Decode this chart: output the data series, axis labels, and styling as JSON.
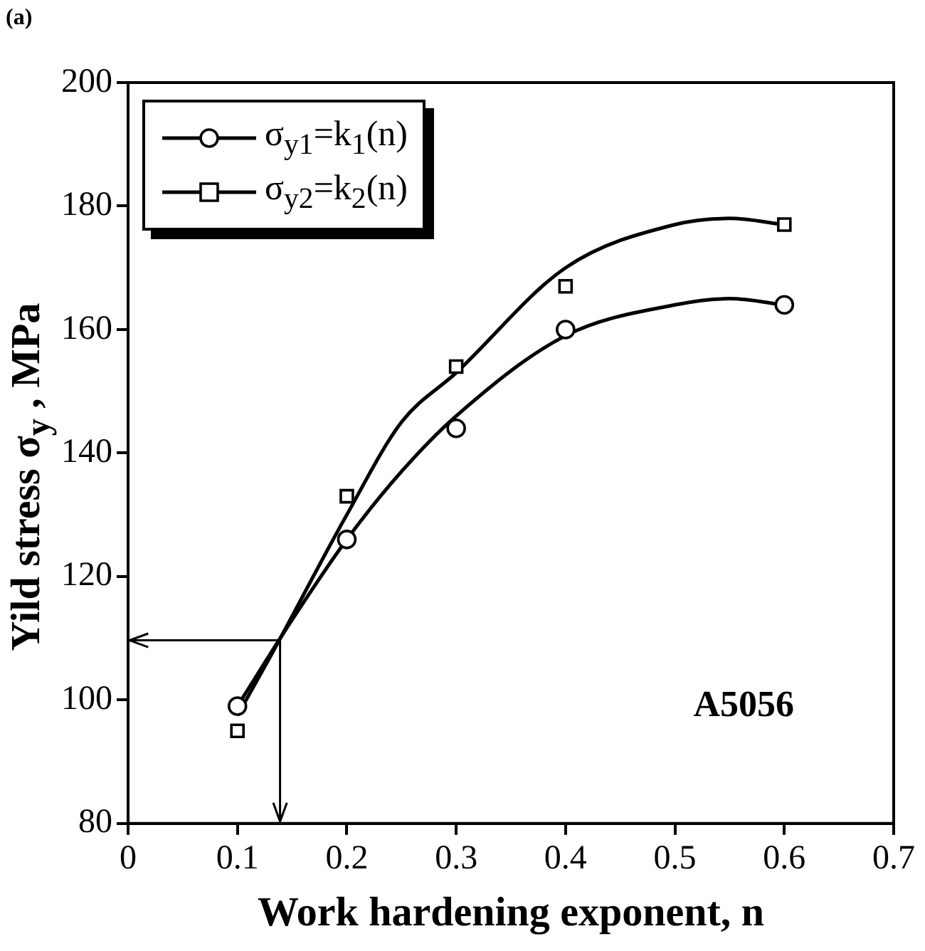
{
  "chart_data": {
    "type": "scatter",
    "xlabel": "Work hardening exponent, n",
    "ylabel": "Yild stress σ$_{y}$ , MPa",
    "annotations": [
      "(a)",
      "A5056"
    ],
    "xlim": [
      0,
      0.7
    ],
    "xticks": [
      0,
      0.1,
      0.2,
      0.3,
      0.4,
      0.5,
      0.6,
      0.7
    ],
    "ylim": [
      80,
      200
    ],
    "yticks": [
      80,
      100,
      120,
      140,
      160,
      180,
      200
    ],
    "legend": "top left",
    "series": [
      {
        "name": "σ$_{y1}$=k$_{1}$(n)",
        "color": "#000000",
        "marker": "circle",
        "x": [
          0.1,
          0.2,
          0.3,
          0.4,
          0.6
        ],
        "values": [
          99,
          126,
          144,
          160,
          164
        ]
      },
      {
        "name": "σ$_{y2}$=k$_{2}$(n)",
        "color": "#000000",
        "marker": "square",
        "x": [
          0.1,
          0.2,
          0.3,
          0.4,
          0.6
        ],
        "values": [
          95,
          133,
          154,
          167,
          177
        ]
      },
      {
        "type": "line",
        "color": "#000000",
        "marker": "none",
        "x": [
          0.1,
          0.15,
          0.2,
          0.25,
          0.3,
          0.4,
          0.5,
          0.55,
          0.6
        ],
        "values": [
          99,
          113,
          126,
          137,
          146,
          159,
          164,
          165,
          164
        ]
      },
      {
        "type": "line",
        "color": "#000000",
        "marker": "none",
        "x": [
          0.1,
          0.13,
          0.2,
          0.25,
          0.3,
          0.4,
          0.5,
          0.55,
          0.6
        ],
        "values": [
          97.5,
          107,
          130,
          145,
          153,
          170,
          177,
          178,
          177
        ]
      }
    ]
  }
}
